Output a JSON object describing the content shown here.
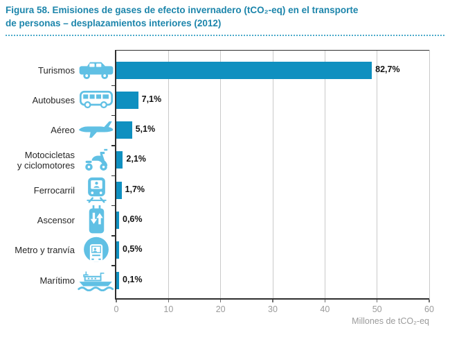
{
  "figure": {
    "title_line1": "Figura 58. Emisiones de gases de efecto invernadero (tCO₂-eq) en el transporte",
    "title_line2": "de personas – desplazamientos interiores (2012)"
  },
  "colors": {
    "title": "#1c85ab",
    "separator": "#49a9c9",
    "bar": "#0f90c0",
    "icon": "#60c0e4",
    "grid": "#c9c9c9",
    "axis": "#2f2f2f",
    "tick_label": "#9b9b9b",
    "category_label": "#262626",
    "value_label": "#121212"
  },
  "chart_data": {
    "type": "bar",
    "orientation": "horizontal",
    "title": "Emisiones de gases de efecto invernadero (tCO₂-eq) en el transporte de personas – desplazamientos interiores (2012)",
    "xlabel": "Millones de tCO₂-eq",
    "xlim": [
      0,
      60
    ],
    "x_ticks": [
      "0",
      "10",
      "20",
      "30",
      "40",
      "50",
      "60"
    ],
    "grid": "vertical-gridlines",
    "legend": "none",
    "rows": [
      {
        "label": "Turismos",
        "icon": "car-icon",
        "percent_label": "82,7%",
        "percent": 82.7,
        "value_mtco2eq_est": 49.0
      },
      {
        "label": "Autobuses",
        "icon": "bus-icon",
        "percent_label": "7,1%",
        "percent": 7.1,
        "value_mtco2eq_est": 4.2
      },
      {
        "label": "Aéreo",
        "icon": "plane-icon",
        "percent_label": "5,1%",
        "percent": 5.1,
        "value_mtco2eq_est": 3.0
      },
      {
        "label": "Motocicletas\ny ciclomotores",
        "icon": "scooter-icon",
        "percent_label": "2,1%",
        "percent": 2.1,
        "value_mtco2eq_est": 1.25
      },
      {
        "label": "Ferrocarril",
        "icon": "train-icon",
        "percent_label": "1,7%",
        "percent": 1.7,
        "value_mtco2eq_est": 1.0
      },
      {
        "label": "Ascensor",
        "icon": "elevator-icon",
        "percent_label": "0,6%",
        "percent": 0.6,
        "value_mtco2eq_est": 0.36
      },
      {
        "label": "Metro y tranvía",
        "icon": "metro-icon",
        "percent_label": "0,5%",
        "percent": 0.5,
        "value_mtco2eq_est": 0.3
      },
      {
        "label": "Marítimo",
        "icon": "ship-icon",
        "percent_label": "0,1%",
        "percent": 0.1,
        "value_mtco2eq_est": 0.06
      }
    ]
  }
}
